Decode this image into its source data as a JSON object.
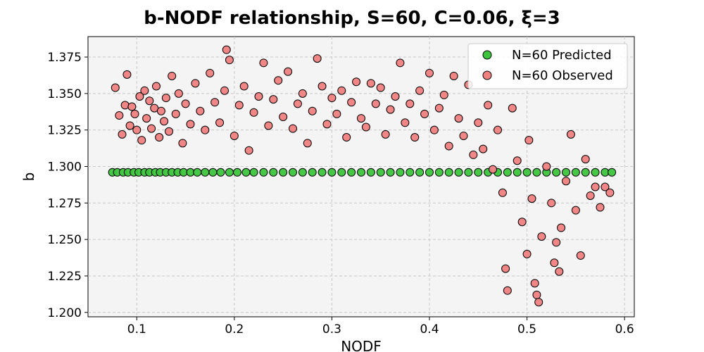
{
  "chart_data": {
    "type": "scatter",
    "title": "b-NODF relationship, S=60, C=0.06, ξ=3",
    "xlabel": "NODF",
    "ylabel": "b",
    "xlim": [
      0.05,
      0.61
    ],
    "ylim": [
      1.197,
      1.389
    ],
    "xticks": [
      0.1,
      0.2,
      0.3,
      0.4,
      0.5,
      0.6
    ],
    "xtick_labels": [
      "0.1",
      "0.2",
      "0.3",
      "0.4",
      "0.5",
      "0.6"
    ],
    "yticks": [
      1.2,
      1.225,
      1.25,
      1.275,
      1.3,
      1.325,
      1.35,
      1.375
    ],
    "ytick_labels": [
      "1.200",
      "1.225",
      "1.250",
      "1.275",
      "1.300",
      "1.325",
      "1.350",
      "1.375"
    ],
    "grid": true,
    "legend_position": "top-right",
    "series": [
      {
        "name": "N=60 Predicted",
        "color": "#3cc43c",
        "points": [
          [
            0.075,
            1.296
          ],
          [
            0.08,
            1.296
          ],
          [
            0.086,
            1.296
          ],
          [
            0.091,
            1.296
          ],
          [
            0.097,
            1.296
          ],
          [
            0.102,
            1.296
          ],
          [
            0.108,
            1.296
          ],
          [
            0.113,
            1.296
          ],
          [
            0.119,
            1.296
          ],
          [
            0.124,
            1.296
          ],
          [
            0.13,
            1.296
          ],
          [
            0.136,
            1.296
          ],
          [
            0.142,
            1.296
          ],
          [
            0.148,
            1.296
          ],
          [
            0.155,
            1.296
          ],
          [
            0.162,
            1.296
          ],
          [
            0.17,
            1.296
          ],
          [
            0.178,
            1.296
          ],
          [
            0.186,
            1.296
          ],
          [
            0.195,
            1.296
          ],
          [
            0.203,
            1.296
          ],
          [
            0.212,
            1.296
          ],
          [
            0.22,
            1.296
          ],
          [
            0.23,
            1.296
          ],
          [
            0.24,
            1.296
          ],
          [
            0.25,
            1.296
          ],
          [
            0.26,
            1.296
          ],
          [
            0.27,
            1.296
          ],
          [
            0.28,
            1.296
          ],
          [
            0.29,
            1.296
          ],
          [
            0.3,
            1.296
          ],
          [
            0.31,
            1.296
          ],
          [
            0.32,
            1.296
          ],
          [
            0.33,
            1.296
          ],
          [
            0.34,
            1.296
          ],
          [
            0.35,
            1.296
          ],
          [
            0.36,
            1.296
          ],
          [
            0.37,
            1.296
          ],
          [
            0.38,
            1.296
          ],
          [
            0.39,
            1.296
          ],
          [
            0.4,
            1.296
          ],
          [
            0.41,
            1.296
          ],
          [
            0.42,
            1.296
          ],
          [
            0.43,
            1.296
          ],
          [
            0.44,
            1.296
          ],
          [
            0.45,
            1.296
          ],
          [
            0.46,
            1.296
          ],
          [
            0.47,
            1.296
          ],
          [
            0.48,
            1.296
          ],
          [
            0.49,
            1.296
          ],
          [
            0.5,
            1.296
          ],
          [
            0.51,
            1.296
          ],
          [
            0.52,
            1.296
          ],
          [
            0.53,
            1.296
          ],
          [
            0.54,
            1.296
          ],
          [
            0.55,
            1.296
          ],
          [
            0.56,
            1.296
          ],
          [
            0.57,
            1.296
          ],
          [
            0.58,
            1.296
          ],
          [
            0.587,
            1.296
          ]
        ]
      },
      {
        "name": "N=60 Observed",
        "color": "#f08080",
        "points": [
          [
            0.078,
            1.354
          ],
          [
            0.082,
            1.335
          ],
          [
            0.085,
            1.322
          ],
          [
            0.088,
            1.342
          ],
          [
            0.09,
            1.363
          ],
          [
            0.093,
            1.328
          ],
          [
            0.095,
            1.341
          ],
          [
            0.098,
            1.336
          ],
          [
            0.1,
            1.325
          ],
          [
            0.103,
            1.348
          ],
          [
            0.105,
            1.318
          ],
          [
            0.108,
            1.352
          ],
          [
            0.11,
            1.333
          ],
          [
            0.113,
            1.345
          ],
          [
            0.115,
            1.326
          ],
          [
            0.118,
            1.34
          ],
          [
            0.12,
            1.355
          ],
          [
            0.123,
            1.32
          ],
          [
            0.125,
            1.338
          ],
          [
            0.128,
            1.331
          ],
          [
            0.13,
            1.347
          ],
          [
            0.133,
            1.324
          ],
          [
            0.136,
            1.362
          ],
          [
            0.14,
            1.336
          ],
          [
            0.143,
            1.35
          ],
          [
            0.147,
            1.316
          ],
          [
            0.15,
            1.343
          ],
          [
            0.155,
            1.329
          ],
          [
            0.16,
            1.357
          ],
          [
            0.165,
            1.338
          ],
          [
            0.17,
            1.325
          ],
          [
            0.175,
            1.364
          ],
          [
            0.18,
            1.344
          ],
          [
            0.185,
            1.33
          ],
          [
            0.19,
            1.352
          ],
          [
            0.192,
            1.38
          ],
          [
            0.195,
            1.373
          ],
          [
            0.2,
            1.321
          ],
          [
            0.205,
            1.342
          ],
          [
            0.21,
            1.355
          ],
          [
            0.215,
            1.311
          ],
          [
            0.22,
            1.337
          ],
          [
            0.225,
            1.348
          ],
          [
            0.23,
            1.371
          ],
          [
            0.235,
            1.328
          ],
          [
            0.24,
            1.346
          ],
          [
            0.245,
            1.359
          ],
          [
            0.25,
            1.334
          ],
          [
            0.255,
            1.365
          ],
          [
            0.26,
            1.326
          ],
          [
            0.265,
            1.343
          ],
          [
            0.27,
            1.35
          ],
          [
            0.275,
            1.316
          ],
          [
            0.28,
            1.338
          ],
          [
            0.285,
            1.374
          ],
          [
            0.29,
            1.355
          ],
          [
            0.295,
            1.329
          ],
          [
            0.3,
            1.347
          ],
          [
            0.305,
            1.336
          ],
          [
            0.31,
            1.352
          ],
          [
            0.315,
            1.32
          ],
          [
            0.32,
            1.344
          ],
          [
            0.325,
            1.358
          ],
          [
            0.33,
            1.333
          ],
          [
            0.335,
            1.327
          ],
          [
            0.34,
            1.357
          ],
          [
            0.345,
            1.343
          ],
          [
            0.35,
            1.354
          ],
          [
            0.355,
            1.322
          ],
          [
            0.36,
            1.339
          ],
          [
            0.365,
            1.348
          ],
          [
            0.37,
            1.371
          ],
          [
            0.375,
            1.33
          ],
          [
            0.38,
            1.343
          ],
          [
            0.385,
            1.32
          ],
          [
            0.39,
            1.352
          ],
          [
            0.395,
            1.336
          ],
          [
            0.4,
            1.364
          ],
          [
            0.405,
            1.325
          ],
          [
            0.41,
            1.34
          ],
          [
            0.415,
            1.349
          ],
          [
            0.42,
            1.314
          ],
          [
            0.425,
            1.362
          ],
          [
            0.43,
            1.333
          ],
          [
            0.435,
            1.321
          ],
          [
            0.44,
            1.356
          ],
          [
            0.445,
            1.308
          ],
          [
            0.45,
            1.33
          ],
          [
            0.455,
            1.312
          ],
          [
            0.46,
            1.342
          ],
          [
            0.465,
            1.298
          ],
          [
            0.47,
            1.325
          ],
          [
            0.475,
            1.282
          ],
          [
            0.478,
            1.23
          ],
          [
            0.48,
            1.215
          ],
          [
            0.485,
            1.34
          ],
          [
            0.49,
            1.304
          ],
          [
            0.495,
            1.262
          ],
          [
            0.5,
            1.24
          ],
          [
            0.502,
            1.318
          ],
          [
            0.505,
            1.278
          ],
          [
            0.508,
            1.22
          ],
          [
            0.51,
            1.212
          ],
          [
            0.512,
            1.207
          ],
          [
            0.515,
            1.252
          ],
          [
            0.52,
            1.3
          ],
          [
            0.525,
            1.275
          ],
          [
            0.528,
            1.234
          ],
          [
            0.53,
            1.248
          ],
          [
            0.533,
            1.228
          ],
          [
            0.535,
            1.258
          ],
          [
            0.54,
            1.29
          ],
          [
            0.545,
            1.322
          ],
          [
            0.55,
            1.27
          ],
          [
            0.555,
            1.239
          ],
          [
            0.56,
            1.305
          ],
          [
            0.565,
            1.28
          ],
          [
            0.57,
            1.286
          ],
          [
            0.575,
            1.272
          ],
          [
            0.58,
            1.286
          ],
          [
            0.585,
            1.282
          ]
        ]
      }
    ]
  }
}
